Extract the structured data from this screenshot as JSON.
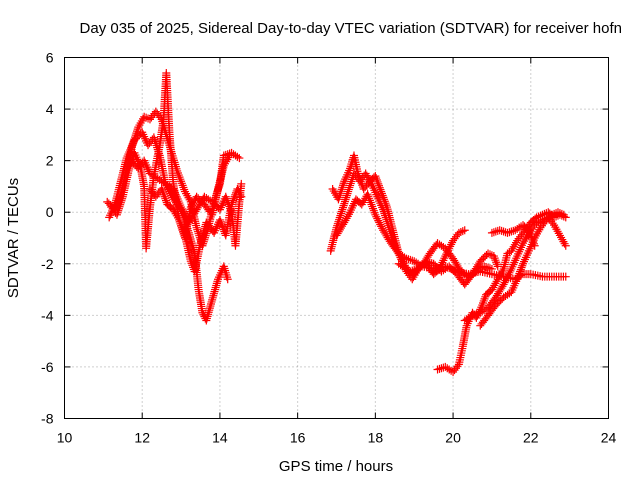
{
  "chart_data": {
    "type": "scatter",
    "title": "Day 035 of 2025, Sidereal Day-to-day VTEC variation (SDTVAR) for receiver hofn",
    "xlabel": "GPS time / hours",
    "ylabel": "SDTVAR / TECUs",
    "xlim": [
      10,
      24
    ],
    "ylim": [
      -8,
      6
    ],
    "x_ticks": [
      "10",
      "12",
      "14",
      "16",
      "18",
      "20",
      "22",
      "24"
    ],
    "y_ticks": [
      "-8",
      "-6",
      "-4",
      "-2",
      "0",
      "2",
      "4",
      "6"
    ],
    "grid": true,
    "marker": "+",
    "series": [
      {
        "name": "SDTVAR",
        "color": "#ff0000",
        "tracks": [
          [
            [
              11.1,
              0.4
            ],
            [
              11.3,
              0.1
            ],
            [
              11.45,
              0.7
            ],
            [
              11.6,
              1.7
            ],
            [
              11.75,
              2.6
            ],
            [
              11.9,
              3.3
            ],
            [
              12.05,
              3.7
            ],
            [
              12.2,
              3.6
            ],
            [
              12.35,
              3.9
            ],
            [
              12.5,
              3.6
            ],
            [
              12.7,
              2.6
            ],
            [
              12.9,
              1.6
            ],
            [
              13.1,
              0.8
            ],
            [
              13.25,
              0.4
            ],
            [
              13.4,
              -0.6
            ],
            [
              13.55,
              -1.3
            ],
            [
              13.7,
              -0.6
            ],
            [
              13.85,
              0.4
            ],
            [
              14.0,
              1.1
            ],
            [
              14.1,
              2.2
            ],
            [
              14.3,
              2.3
            ],
            [
              14.5,
              2.1
            ]
          ],
          [
            [
              11.15,
              -0.2
            ],
            [
              11.3,
              0.3
            ],
            [
              11.45,
              1.2
            ],
            [
              11.6,
              2.1
            ],
            [
              11.8,
              2.8
            ],
            [
              12.0,
              3.1
            ],
            [
              12.15,
              2.6
            ],
            [
              12.3,
              2.9
            ],
            [
              12.45,
              2.2
            ],
            [
              12.6,
              1.1
            ],
            [
              12.8,
              0.5
            ],
            [
              13.0,
              0.1
            ],
            [
              13.2,
              -0.8
            ],
            [
              13.35,
              -1.6
            ],
            [
              13.45,
              -3.0
            ],
            [
              13.55,
              -3.9
            ],
            [
              13.65,
              -4.2
            ],
            [
              13.8,
              -3.4
            ],
            [
              13.95,
              -2.6
            ],
            [
              14.1,
              -2.1
            ],
            [
              14.2,
              -2.6
            ]
          ],
          [
            [
              11.2,
              0.2
            ],
            [
              11.35,
              -0.1
            ],
            [
              11.5,
              0.6
            ],
            [
              11.65,
              1.6
            ],
            [
              11.8,
              2.3
            ],
            [
              11.95,
              1.8
            ],
            [
              12.05,
              1.0
            ],
            [
              12.1,
              -1.4
            ],
            [
              12.2,
              0.2
            ],
            [
              12.3,
              1.4
            ],
            [
              12.45,
              2.6
            ],
            [
              12.55,
              3.6
            ],
            [
              12.62,
              5.4
            ],
            [
              12.7,
              3.1
            ],
            [
              12.8,
              1.1
            ],
            [
              12.95,
              -0.3
            ],
            [
              13.1,
              -1.0
            ],
            [
              13.25,
              0.2
            ],
            [
              13.4,
              0.6
            ],
            [
              13.6,
              0.3
            ],
            [
              13.8,
              -0.1
            ],
            [
              13.95,
              0.9
            ],
            [
              14.1,
              1.8
            ],
            [
              14.25,
              2.2
            ]
          ],
          [
            [
              11.7,
              2.0
            ],
            [
              11.9,
              1.7
            ],
            [
              12.05,
              2.0
            ],
            [
              12.2,
              1.5
            ],
            [
              12.4,
              1.3
            ],
            [
              12.6,
              1.1
            ],
            [
              12.8,
              0.9
            ],
            [
              13.0,
              0.2
            ],
            [
              13.2,
              -0.4
            ],
            [
              13.4,
              0.1
            ],
            [
              13.6,
              0.6
            ],
            [
              13.8,
              0.4
            ],
            [
              14.0,
              0.1
            ],
            [
              14.15,
              0.6
            ],
            [
              14.3,
              0.0
            ],
            [
              14.4,
              -1.3
            ],
            [
              14.5,
              0.4
            ],
            [
              14.55,
              1.1
            ]
          ],
          [
            [
              12.2,
              0.9
            ],
            [
              12.35,
              0.6
            ],
            [
              12.5,
              0.9
            ],
            [
              12.65,
              0.3
            ],
            [
              12.8,
              0.1
            ],
            [
              12.95,
              -0.3
            ],
            [
              13.1,
              -0.9
            ],
            [
              13.25,
              -1.9
            ],
            [
              13.35,
              -2.3
            ],
            [
              13.5,
              -1.2
            ],
            [
              13.65,
              -0.4
            ],
            [
              13.85,
              -0.8
            ],
            [
              14.0,
              -0.3
            ],
            [
              14.15,
              -0.9
            ],
            [
              14.3,
              0.3
            ],
            [
              14.45,
              0.9
            ],
            [
              14.55,
              0.6
            ]
          ],
          [
            [
              16.85,
              -1.5
            ],
            [
              17.0,
              -0.6
            ],
            [
              17.15,
              0.1
            ],
            [
              17.3,
              0.8
            ],
            [
              17.45,
              1.5
            ],
            [
              17.6,
              1.2
            ],
            [
              17.75,
              1.5
            ],
            [
              17.9,
              1.1
            ],
            [
              18.05,
              0.6
            ],
            [
              18.2,
              0.1
            ],
            [
              18.35,
              -0.6
            ],
            [
              18.5,
              -1.3
            ],
            [
              18.7,
              -1.9
            ],
            [
              18.85,
              -2.3
            ],
            [
              19.0,
              -2.4
            ],
            [
              19.15,
              -2.1
            ],
            [
              19.3,
              -2.0
            ],
            [
              19.5,
              -2.4
            ],
            [
              19.65,
              -2.2
            ],
            [
              19.8,
              -1.7
            ],
            [
              20.0,
              -1.1
            ],
            [
              20.15,
              -0.8
            ],
            [
              20.3,
              -0.7
            ]
          ],
          [
            [
              16.9,
              0.9
            ],
            [
              17.05,
              0.5
            ],
            [
              17.2,
              1.2
            ],
            [
              17.35,
              1.7
            ],
            [
              17.45,
              2.2
            ],
            [
              17.55,
              1.5
            ],
            [
              17.7,
              0.9
            ],
            [
              17.85,
              1.2
            ],
            [
              18.0,
              1.4
            ],
            [
              18.15,
              0.8
            ],
            [
              18.3,
              0.2
            ],
            [
              18.45,
              -0.7
            ],
            [
              18.6,
              -1.6
            ],
            [
              18.8,
              -2.3
            ],
            [
              18.95,
              -2.6
            ],
            [
              19.1,
              -2.2
            ],
            [
              19.3,
              -1.9
            ],
            [
              19.5,
              -2.0
            ],
            [
              19.7,
              -2.3
            ],
            [
              19.9,
              -2.1
            ],
            [
              20.1,
              -2.4
            ],
            [
              20.3,
              -2.8
            ],
            [
              20.5,
              -2.4
            ],
            [
              20.7,
              -1.9
            ],
            [
              20.9,
              -1.6
            ],
            [
              21.05,
              -1.7
            ],
            [
              21.15,
              -2.1
            ]
          ],
          [
            [
              17.0,
              -0.9
            ],
            [
              17.2,
              -0.4
            ],
            [
              17.35,
              0.0
            ],
            [
              17.5,
              0.5
            ],
            [
              17.65,
              0.3
            ],
            [
              17.8,
              0.7
            ],
            [
              18.0,
              -0.1
            ],
            [
              18.2,
              -0.7
            ],
            [
              18.4,
              -1.2
            ],
            [
              18.6,
              -1.6
            ],
            [
              18.8,
              -1.8
            ],
            [
              19.0,
              -1.9
            ],
            [
              19.2,
              -2.1
            ],
            [
              19.4,
              -1.6
            ],
            [
              19.6,
              -1.2
            ],
            [
              19.8,
              -1.4
            ],
            [
              20.0,
              -1.8
            ],
            [
              20.2,
              -2.3
            ],
            [
              20.4,
              -2.5
            ],
            [
              20.6,
              -2.3
            ],
            [
              20.8,
              -2.1
            ],
            [
              21.0,
              -2.2
            ]
          ],
          [
            [
              18.6,
              -2.0
            ],
            [
              18.9,
              -2.3
            ],
            [
              19.2,
              -2.1
            ],
            [
              19.5,
              -2.2
            ],
            [
              19.8,
              -2.1
            ],
            [
              20.1,
              -2.3
            ],
            [
              20.4,
              -2.4
            ],
            [
              20.7,
              -2.3
            ],
            [
              21.0,
              -2.4
            ],
            [
              21.3,
              -2.5
            ],
            [
              21.6,
              -2.6
            ],
            [
              21.8,
              -2.4
            ],
            [
              22.0,
              -2.4
            ],
            [
              22.3,
              -2.5
            ],
            [
              22.6,
              -2.5
            ],
            [
              22.9,
              -2.5
            ]
          ],
          [
            [
              19.6,
              -6.1
            ],
            [
              19.8,
              -6.0
            ],
            [
              20.0,
              -6.2
            ],
            [
              20.15,
              -5.9
            ],
            [
              20.25,
              -5.2
            ],
            [
              20.35,
              -4.4
            ],
            [
              20.5,
              -3.9
            ],
            [
              20.6,
              -4.1
            ],
            [
              20.75,
              -3.6
            ],
            [
              20.85,
              -3.2
            ],
            [
              21.0,
              -3.0
            ],
            [
              21.15,
              -2.6
            ],
            [
              21.3,
              -2.2
            ],
            [
              21.4,
              -1.6
            ],
            [
              21.5,
              -1.5
            ],
            [
              21.65,
              -1.1
            ],
            [
              21.8,
              -0.8
            ],
            [
              21.9,
              -0.6
            ],
            [
              22.0,
              -0.4
            ],
            [
              22.15,
              -0.2
            ],
            [
              22.3,
              -0.1
            ],
            [
              22.45,
              0.0
            ],
            [
              22.6,
              -0.2
            ],
            [
              22.75,
              -0.1
            ],
            [
              22.9,
              -0.2
            ]
          ],
          [
            [
              20.3,
              -4.2
            ],
            [
              20.5,
              -4.0
            ],
            [
              20.7,
              -3.9
            ],
            [
              20.9,
              -3.7
            ],
            [
              21.1,
              -3.3
            ],
            [
              21.3,
              -2.8
            ],
            [
              21.5,
              -2.2
            ],
            [
              21.65,
              -1.7
            ],
            [
              21.8,
              -1.2
            ],
            [
              21.95,
              -0.8
            ],
            [
              22.1,
              -0.5
            ],
            [
              22.3,
              -0.3
            ],
            [
              22.45,
              -0.2
            ],
            [
              22.6,
              -0.5
            ],
            [
              22.75,
              -0.9
            ],
            [
              22.9,
              -1.3
            ]
          ],
          [
            [
              20.7,
              -4.4
            ],
            [
              20.9,
              -4.0
            ],
            [
              21.1,
              -3.6
            ],
            [
              21.3,
              -3.3
            ],
            [
              21.5,
              -3.1
            ],
            [
              21.65,
              -2.6
            ],
            [
              21.8,
              -2.0
            ],
            [
              21.95,
              -1.5
            ],
            [
              22.1,
              -1.0
            ],
            [
              22.25,
              -0.6
            ],
            [
              22.4,
              -0.3
            ],
            [
              22.55,
              -0.1
            ],
            [
              22.7,
              0.0
            ],
            [
              22.85,
              -0.1
            ]
          ],
          [
            [
              21.0,
              -0.8
            ],
            [
              21.2,
              -0.7
            ],
            [
              21.4,
              -0.8
            ],
            [
              21.6,
              -0.7
            ],
            [
              21.8,
              -0.5
            ],
            [
              21.95,
              -0.7
            ],
            [
              22.1,
              -1.3
            ]
          ]
        ]
      }
    ]
  }
}
